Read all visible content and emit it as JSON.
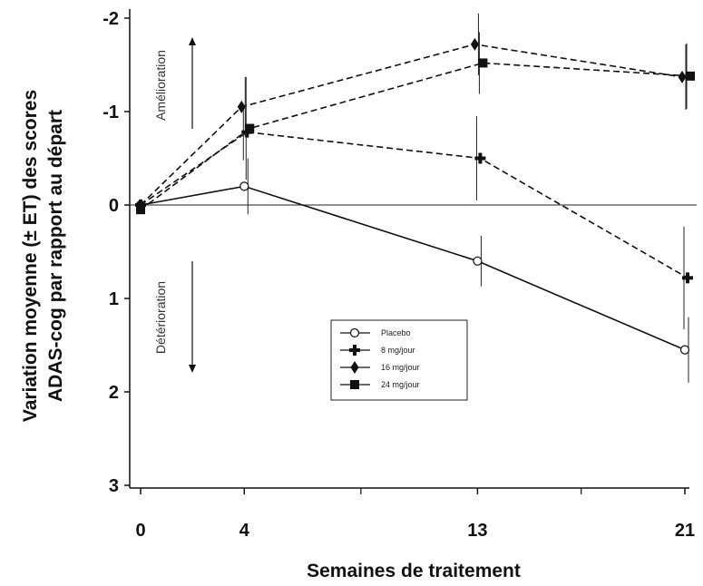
{
  "chart_data": {
    "type": "line",
    "title": "",
    "xlabel": "Semaines de traitement",
    "ylabel_lines": [
      "Variation moyenne (± ET) des scores",
      "ADAS-cog par rapport au départ"
    ],
    "x_ticks": [
      0,
      4,
      13,
      21
    ],
    "y_ticks": [
      -2,
      -1,
      0,
      1,
      2,
      3
    ],
    "xlim": [
      0,
      21
    ],
    "ylim": [
      -2,
      3
    ],
    "y_inverted": true,
    "reference_line": 0,
    "grid": false,
    "legend_position": "center-bottom",
    "annotations": {
      "improvement": "Amélioration",
      "deterioration": "Détérioration"
    },
    "series": [
      {
        "name": "Placebo",
        "marker": "open-circle",
        "line_style": "solid",
        "x": [
          0,
          4,
          13,
          21
        ],
        "y": [
          0.0,
          -0.2,
          0.6,
          1.55
        ],
        "error": [
          0.0,
          0.3,
          0.27,
          0.35
        ]
      },
      {
        "name": "8 mg/jour",
        "marker": "cross",
        "line_style": "dashed",
        "x": [
          0,
          4,
          13,
          21
        ],
        "y": [
          0.0,
          -0.78,
          -0.5,
          0.78
        ],
        "error": [
          0.0,
          0.3,
          0.45,
          0.55
        ]
      },
      {
        "name": "16 mg/jour",
        "marker": "diamond",
        "line_style": "dashed",
        "x": [
          0,
          4,
          13,
          21
        ],
        "y": [
          0.0,
          -1.05,
          -1.72,
          -1.37
        ],
        "error": [
          0.0,
          0.32,
          0.33,
          0.35
        ]
      },
      {
        "name": "24 mg/jour",
        "marker": "square",
        "line_style": "dashed",
        "x": [
          0,
          4,
          13,
          21
        ],
        "y": [
          0.05,
          -0.82,
          -1.52,
          -1.38
        ],
        "error": [
          0.0,
          0.55,
          0.33,
          0.35
        ]
      }
    ]
  }
}
